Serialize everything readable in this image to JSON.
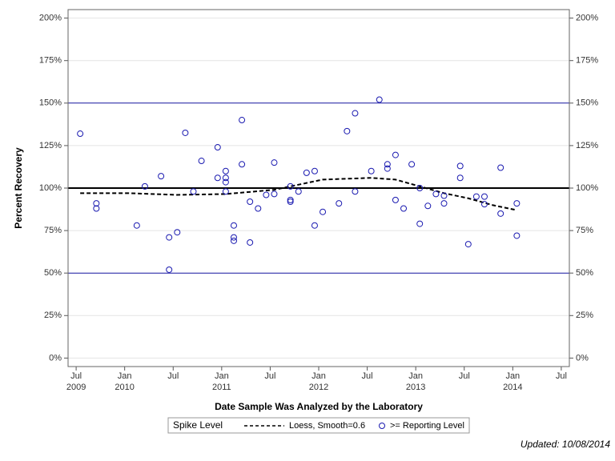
{
  "chart_data": {
    "type": "scatter",
    "y_label": "Percent Recovery",
    "x_label": "Date Sample Was Analyzed by the Laboratory",
    "legend_title": "Spike Level",
    "footnote": "Updated: 10/08/2014",
    "xlim": [
      "2009-06",
      "2014-08"
    ],
    "xticks": [
      {
        "value": "2009-07",
        "label": "Jul\n2009"
      },
      {
        "value": "2010-01",
        "label": "Jan\n2010"
      },
      {
        "value": "2010-07",
        "label": "Jul"
      },
      {
        "value": "2011-01",
        "label": "Jan\n2011"
      },
      {
        "value": "2011-07",
        "label": "Jul"
      },
      {
        "value": "2012-01",
        "label": "Jan\n2012"
      },
      {
        "value": "2012-07",
        "label": "Jul"
      },
      {
        "value": "2013-01",
        "label": "Jan\n2013"
      },
      {
        "value": "2013-07",
        "label": "Jul"
      },
      {
        "value": "2014-01",
        "label": "Jan\n2014"
      },
      {
        "value": "2014-07",
        "label": "Jul"
      }
    ],
    "ylim": [
      -5,
      205
    ],
    "yticks": [
      {
        "value": 0,
        "label": "0%"
      },
      {
        "value": 25,
        "label": "25%"
      },
      {
        "value": 50,
        "label": "50%"
      },
      {
        "value": 75,
        "label": "75%"
      },
      {
        "value": 100,
        "label": "100%"
      },
      {
        "value": 125,
        "label": "125%"
      },
      {
        "value": 150,
        "label": "150%"
      },
      {
        "value": 175,
        "label": "175%"
      },
      {
        "value": 200,
        "label": "200%"
      }
    ],
    "grid": true,
    "reference_lines": [
      {
        "value": 50,
        "color": "#1a1aa6"
      },
      {
        "value": 100,
        "color": "#000000"
      },
      {
        "value": 150,
        "color": "#1a1aa6"
      }
    ],
    "series": [
      {
        "name": "Loess, Smooth=0.6",
        "type": "line",
        "color": "#000000",
        "x": [
          "2009-07",
          "2010-01",
          "2010-07",
          "2011-01",
          "2011-07",
          "2012-01",
          "2012-07",
          "2012-10",
          "2013-01",
          "2013-04",
          "2013-07",
          "2013-10",
          "2014-01"
        ],
        "values": [
          97,
          97,
          96,
          96.5,
          99,
          105,
          106,
          105,
          101,
          97,
          94,
          90,
          87
        ]
      },
      {
        "name": ">= Reporting Level",
        "type": "scatter",
        "color": "#1a1ab0",
        "x": [
          "2009-07",
          "2009-09",
          "2009-09",
          "2010-02",
          "2010-03",
          "2010-05",
          "2010-06",
          "2010-06",
          "2010-07",
          "2010-08",
          "2010-09",
          "2010-10",
          "2010-12",
          "2010-12",
          "2011-01",
          "2011-01",
          "2011-01",
          "2011-01",
          "2011-02",
          "2011-02",
          "2011-02",
          "2011-03",
          "2011-03",
          "2011-04",
          "2011-04",
          "2011-05",
          "2011-06",
          "2011-07",
          "2011-07",
          "2011-09",
          "2011-09",
          "2011-09",
          "2011-10",
          "2011-11",
          "2011-12",
          "2011-12",
          "2012-01",
          "2012-03",
          "2012-04",
          "2012-05",
          "2012-05",
          "2012-07",
          "2012-08",
          "2012-09",
          "2012-09",
          "2012-10",
          "2012-10",
          "2012-11",
          "2012-12",
          "2013-01",
          "2013-01",
          "2013-02",
          "2013-03",
          "2013-04",
          "2013-04",
          "2013-06",
          "2013-06",
          "2013-07",
          "2013-08",
          "2013-09",
          "2013-09",
          "2013-11",
          "2013-11",
          "2014-01",
          "2014-01"
        ],
        "values": [
          132,
          91,
          88,
          78,
          101,
          107,
          52,
          71,
          74,
          132.5,
          98,
          116,
          124,
          106,
          98,
          103.5,
          110,
          106,
          69,
          71,
          78,
          114,
          140,
          68,
          92,
          88,
          96,
          96.5,
          115,
          93,
          101,
          92,
          98,
          109,
          78,
          110,
          86,
          91,
          133.5,
          144,
          98,
          110,
          152,
          114,
          111.5,
          119.5,
          93,
          88,
          114,
          79,
          100,
          89.5,
          96.5,
          91,
          95.5,
          113,
          106,
          67,
          95,
          95,
          90.5,
          85,
          112,
          91,
          72
        ]
      }
    ]
  }
}
